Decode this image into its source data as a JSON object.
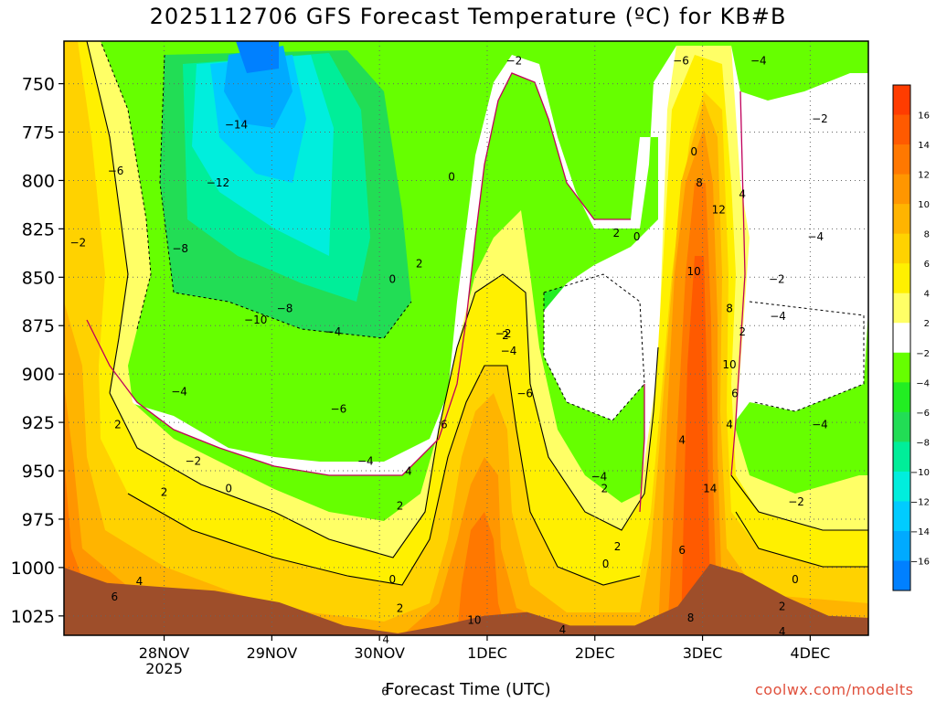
{
  "title": "2025112706 GFS Forecast Temperature (ºC) for KB#B",
  "xlabel": "Forecast Time (UTC)",
  "credit": "coolwx.com/modelts",
  "chart_data": {
    "type": "contour",
    "title": "2025112706 GFS Forecast Temperature (ºC) for KB#B",
    "xlabel": "Forecast Time (UTC)",
    "ylabel": "",
    "y_axis": {
      "ticks": [
        750,
        775,
        800,
        825,
        850,
        875,
        900,
        925,
        950,
        975,
        1000,
        1025
      ],
      "range": [
        1035,
        728
      ],
      "units": "hPa"
    },
    "x_axis": {
      "ticks": [
        {
          "label": "28NOV",
          "sublabel": "2025",
          "t": 0.93
        },
        {
          "label": "29NOV",
          "sublabel": "",
          "t": 1.93
        },
        {
          "label": "30NOV",
          "sublabel": "",
          "t": 2.93
        },
        {
          "label": "1DEC",
          "sublabel": "",
          "t": 3.93
        },
        {
          "label": "2DEC",
          "sublabel": "",
          "t": 4.93
        },
        {
          "label": "3DEC",
          "sublabel": "",
          "t": 5.93
        },
        {
          "label": "4DEC",
          "sublabel": "",
          "t": 6.93
        }
      ],
      "range": [
        0,
        7.47
      ]
    },
    "grid": true,
    "colorbar": {
      "position": "right",
      "labels": [
        "16",
        "14",
        "12",
        "10",
        "8",
        "6",
        "4",
        "2",
        "-2",
        "-4",
        "-6",
        "-8",
        "-10",
        "-12",
        "-14",
        "-16"
      ],
      "colors": [
        "#ff3c00",
        "#ff5a00",
        "#ff7800",
        "#ff9600",
        "#ffb400",
        "#ffd200",
        "#fff000",
        "#ffff66",
        "#ffffff",
        "#66ff00",
        "#22ee22",
        "#22dd55",
        "#00ee99",
        "#00eedd",
        "#00ccff",
        "#00aaff",
        "#0080ff"
      ]
    },
    "contour_labels": [
      {
        "v": "-2",
        "t": 4.18,
        "p": 740
      },
      {
        "v": "-6",
        "t": 5.73,
        "p": 740
      },
      {
        "v": "-4",
        "t": 6.45,
        "p": 740
      },
      {
        "v": "-14",
        "t": 1.6,
        "p": 773
      },
      {
        "v": "-2",
        "t": 7.02,
        "p": 770
      },
      {
        "v": "0",
        "t": 5.85,
        "p": 787
      },
      {
        "v": "-6",
        "t": 0.48,
        "p": 797
      },
      {
        "v": "-12",
        "t": 1.43,
        "p": 803
      },
      {
        "v": "0",
        "t": 3.6,
        "p": 800
      },
      {
        "v": "8",
        "t": 5.9,
        "p": 803
      },
      {
        "v": "4",
        "t": 6.3,
        "p": 809
      },
      {
        "v": "12",
        "t": 6.08,
        "p": 817
      },
      {
        "v": "-2",
        "t": 0.13,
        "p": 834
      },
      {
        "v": "-8",
        "t": 1.08,
        "p": 837
      },
      {
        "v": "2",
        "t": 5.13,
        "p": 829
      },
      {
        "v": "0",
        "t": 5.32,
        "p": 831
      },
      {
        "v": "-4",
        "t": 6.98,
        "p": 831
      },
      {
        "v": "2",
        "t": 3.3,
        "p": 845
      },
      {
        "v": "0",
        "t": 3.05,
        "p": 853
      },
      {
        "v": "10",
        "t": 5.85,
        "p": 849
      },
      {
        "v": "-2",
        "t": 6.62,
        "p": 853
      },
      {
        "v": "-8",
        "t": 2.05,
        "p": 868
      },
      {
        "v": "-10",
        "t": 1.78,
        "p": 874
      },
      {
        "v": "8",
        "t": 6.18,
        "p": 868
      },
      {
        "v": "-4",
        "t": 6.63,
        "p": 872
      },
      {
        "v": "-4",
        "t": 2.5,
        "p": 880
      },
      {
        "v": "2",
        "t": 4.1,
        "p": 882
      },
      {
        "v": "-2",
        "t": 4.08,
        "p": 881
      },
      {
        "v": "2",
        "t": 6.3,
        "p": 880
      },
      {
        "v": "-4",
        "t": 4.13,
        "p": 890
      },
      {
        "v": "10",
        "t": 6.18,
        "p": 897
      },
      {
        "v": "-4",
        "t": 1.07,
        "p": 911
      },
      {
        "v": "-6",
        "t": 4.28,
        "p": 912
      },
      {
        "v": "6",
        "t": 6.23,
        "p": 912
      },
      {
        "v": "-6",
        "t": 2.55,
        "p": 920
      },
      {
        "v": "2",
        "t": 0.5,
        "p": 928
      },
      {
        "v": "6",
        "t": 3.53,
        "p": 928
      },
      {
        "v": "4",
        "t": 6.18,
        "p": 928
      },
      {
        "v": "-4",
        "t": 7.02,
        "p": 928
      },
      {
        "v": "4",
        "t": 5.74,
        "p": 936
      },
      {
        "v": "-2",
        "t": 1.2,
        "p": 947
      },
      {
        "v": "-4",
        "t": 2.8,
        "p": 947
      },
      {
        "v": "4",
        "t": 3.2,
        "p": 952
      },
      {
        "v": "-4",
        "t": 4.97,
        "p": 955
      },
      {
        "v": "0",
        "t": 1.53,
        "p": 961
      },
      {
        "v": "2",
        "t": 5.02,
        "p": 961
      },
      {
        "v": "14",
        "t": 6.0,
        "p": 961
      },
      {
        "v": "2",
        "t": 0.93,
        "p": 963
      },
      {
        "v": "2",
        "t": 3.12,
        "p": 970
      },
      {
        "v": "-2",
        "t": 6.8,
        "p": 968
      },
      {
        "v": "2",
        "t": 5.14,
        "p": 991
      },
      {
        "v": "6",
        "t": 5.74,
        "p": 993
      },
      {
        "v": "0",
        "t": 5.03,
        "p": 1000
      },
      {
        "v": "4",
        "t": 0.7,
        "p": 1009
      },
      {
        "v": "0",
        "t": 3.05,
        "p": 1008
      },
      {
        "v": "0",
        "t": 6.79,
        "p": 1008
      },
      {
        "v": "6",
        "t": 0.47,
        "p": 1017
      },
      {
        "v": "2",
        "t": 3.12,
        "p": 1023
      },
      {
        "v": "2",
        "t": 6.67,
        "p": 1022
      },
      {
        "v": "8",
        "t": 5.82,
        "p": 1028
      },
      {
        "v": "10",
        "t": 3.81,
        "p": 1029
      },
      {
        "v": "4",
        "t": 4.63,
        "p": 1034
      },
      {
        "v": "4",
        "t": 2.99,
        "p": 1039
      },
      {
        "v": "4",
        "t": 6.67,
        "p": 1035
      },
      {
        "v": "6",
        "t": 2.98,
        "p": 1066
      }
    ],
    "surface_pressure_profile": [
      [
        0,
        1000
      ],
      [
        0.4,
        1008
      ],
      [
        0.9,
        1010
      ],
      [
        1.4,
        1012
      ],
      [
        2.0,
        1018
      ],
      [
        2.6,
        1030
      ],
      [
        3.1,
        1034
      ],
      [
        3.5,
        1030
      ],
      [
        3.9,
        1025
      ],
      [
        4.3,
        1023
      ],
      [
        4.7,
        1030
      ],
      [
        5.3,
        1030
      ],
      [
        5.7,
        1020
      ],
      [
        6.0,
        998
      ],
      [
        6.3,
        1003
      ],
      [
        6.7,
        1015
      ],
      [
        7.1,
        1025
      ],
      [
        7.47,
        1026
      ]
    ]
  }
}
